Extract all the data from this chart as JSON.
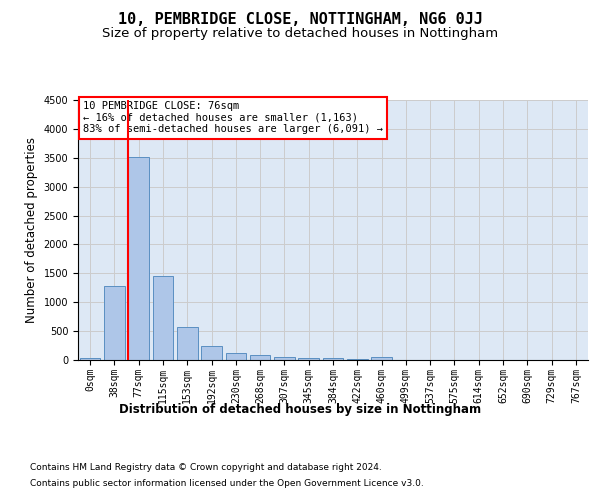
{
  "title": "10, PEMBRIDGE CLOSE, NOTTINGHAM, NG6 0JJ",
  "subtitle": "Size of property relative to detached houses in Nottingham",
  "xlabel": "Distribution of detached houses by size in Nottingham",
  "ylabel": "Number of detached properties",
  "bar_labels": [
    "0sqm",
    "38sqm",
    "77sqm",
    "115sqm",
    "153sqm",
    "192sqm",
    "230sqm",
    "268sqm",
    "307sqm",
    "345sqm",
    "384sqm",
    "422sqm",
    "460sqm",
    "499sqm",
    "537sqm",
    "575sqm",
    "614sqm",
    "652sqm",
    "690sqm",
    "729sqm",
    "767sqm"
  ],
  "bar_values": [
    35,
    1280,
    3510,
    1460,
    575,
    245,
    115,
    82,
    50,
    32,
    28,
    25,
    50,
    0,
    0,
    0,
    0,
    0,
    0,
    0,
    0
  ],
  "bar_color": "#aec6e8",
  "bar_edge_color": "#5a8fc2",
  "grid_color": "#cccccc",
  "background_color": "#dde8f5",
  "red_line_x": 2,
  "annotation_text": "10 PEMBRIDGE CLOSE: 76sqm\n← 16% of detached houses are smaller (1,163)\n83% of semi-detached houses are larger (6,091) →",
  "annotation_box_color": "white",
  "annotation_border_color": "red",
  "ylim": [
    0,
    4500
  ],
  "yticks": [
    0,
    500,
    1000,
    1500,
    2000,
    2500,
    3000,
    3500,
    4000,
    4500
  ],
  "footer_line1": "Contains HM Land Registry data © Crown copyright and database right 2024.",
  "footer_line2": "Contains public sector information licensed under the Open Government Licence v3.0.",
  "title_fontsize": 11,
  "subtitle_fontsize": 9.5,
  "axis_label_fontsize": 8.5,
  "tick_fontsize": 7,
  "footer_fontsize": 6.5,
  "annotation_fontsize": 7.5
}
